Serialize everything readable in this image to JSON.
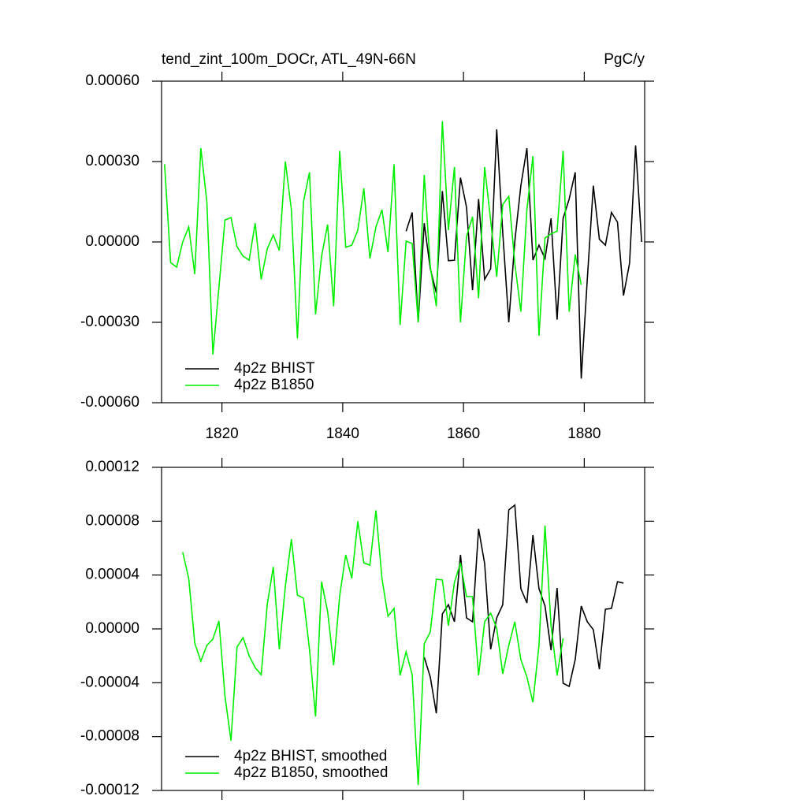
{
  "chart_data": [
    {
      "type": "line",
      "title": "tend_zint_100m_DOCr, ATL_49N-66N",
      "units": "PgC/y",
      "xlim": [
        1810,
        1890
      ],
      "xticks": [
        1820,
        1840,
        1860,
        1880
      ],
      "ylim": [
        -0.0006,
        0.0006
      ],
      "yticks": [
        {
          "value": 0.0006,
          "label": "0.00060"
        },
        {
          "value": 0.0003,
          "label": "0.00030"
        },
        {
          "value": 0,
          "label": "0.00000"
        },
        {
          "value": -0.0003,
          "label": "-0.00030"
        },
        {
          "value": -0.0006,
          "label": "-0.00060"
        }
      ],
      "legend": "lower left",
      "series": [
        {
          "name": "4p2z BHIST",
          "color": "#000000",
          "x": [
            1850.5,
            1851.5,
            1852.5,
            1853.5,
            1854.5,
            1855.5,
            1856.5,
            1857.5,
            1858.5,
            1859.5,
            1860.5,
            1861.5,
            1862.5,
            1863.5,
            1864.5,
            1865.5,
            1866.5,
            1867.5,
            1868.5,
            1869.5,
            1870.5,
            1871.5,
            1872.5,
            1873.5,
            1874.5,
            1875.5,
            1876.5,
            1877.5,
            1878.5,
            1879.5,
            1880.5,
            1881.5,
            1882.5,
            1883.5,
            1884.5,
            1885.5,
            1886.5,
            1887.5,
            1888.5,
            1889.5
          ],
          "values": [
            4e-05,
            0.00011,
            -0.0003,
            7e-05,
            -0.0001,
            -0.00019,
            0.00019,
            -7e-05,
            -6.8e-05,
            0.00024,
            0.00013,
            -0.00018,
            0.00016,
            -0.00014,
            -0.0001,
            0.00042,
            3.5e-05,
            -0.0003,
            3e-06,
            0.00021,
            0.00035,
            -6.8e-05,
            -1.2e-05,
            -6.2e-05,
            8.8e-05,
            -0.00029,
            8.8e-05,
            0.00016,
            0.00026,
            -0.00051,
            -0.00014,
            0.00021,
            1e-05,
            -1.2e-05,
            0.00011,
            7.4e-05,
            -0.0002,
            -7.9e-05,
            0.00036,
            0
          ]
        },
        {
          "name": "4p2z B1850",
          "color": "#00ee00",
          "x": [
            1810.5,
            1811.5,
            1812.5,
            1813.5,
            1814.5,
            1815.5,
            1816.5,
            1817.5,
            1818.5,
            1819.5,
            1820.5,
            1821.5,
            1822.5,
            1823.5,
            1824.5,
            1825.5,
            1826.5,
            1827.5,
            1828.5,
            1829.5,
            1830.5,
            1831.5,
            1832.5,
            1833.5,
            1834.5,
            1835.5,
            1836.5,
            1837.5,
            1838.5,
            1839.5,
            1840.5,
            1841.5,
            1842.5,
            1843.5,
            1844.5,
            1845.5,
            1846.5,
            1847.5,
            1848.5,
            1849.5,
            1850.5,
            1851.5,
            1852.5,
            1853.5,
            1854.5,
            1855.5,
            1856.5,
            1857.5,
            1858.5,
            1859.5,
            1860.5,
            1861.5,
            1862.5,
            1863.5,
            1864.5,
            1865.5,
            1866.5,
            1867.5,
            1868.5,
            1869.5,
            1870.5,
            1871.5,
            1872.5,
            1873.5,
            1874.5,
            1875.5,
            1876.5,
            1877.5,
            1878.5,
            1879.5
          ],
          "values": [
            0.00029,
            -7.7e-05,
            -9.4e-05,
            0,
            5.6e-05,
            -0.00012,
            0.00035,
            0.00015,
            -0.00042,
            -0.00017,
            8.2e-05,
            9.1e-05,
            -1.8e-05,
            -5.3e-05,
            -6.8e-05,
            7e-05,
            -0.00014,
            -2.6e-05,
            2.6e-05,
            -3.2e-05,
            0.0003,
            0.00012,
            -0.00036,
            0.00015,
            0.00026,
            -0.00027,
            -5.3e-05,
            6.5e-05,
            -0.00024,
            0.00034,
            -2e-05,
            -1.2e-05,
            4.4e-05,
            0.0002,
            -6.2e-05,
            5.6e-05,
            0.00012,
            -3.8e-05,
            0.00029,
            -0.00031,
            3e-06,
            -6e-06,
            -0.0003,
            0.00025,
            -9.1e-05,
            -0.00024,
            0.00045,
            4.4e-05,
            0.00028,
            -0.0003,
            2e-05,
            9.4e-05,
            -0.00021,
            0.00028,
            8e-05,
            -0.00013,
            0.00014,
            0.00017,
            -8e-05,
            -0.00026,
            0.00012,
            0.00032,
            -0.00035,
            1.5e-05,
            3e-05,
            4e-05,
            0.00034,
            -0.00026,
            -4.7e-05,
            -0.00016
          ]
        }
      ]
    },
    {
      "type": "line",
      "xlim": [
        1810,
        1890
      ],
      "xticks": [
        1820,
        1840,
        1860,
        1880
      ],
      "ylim": [
        -0.00012,
        0.00012
      ],
      "yticks": [
        {
          "value": 0.00012,
          "label": "0.00012"
        },
        {
          "value": 8e-05,
          "label": "0.00008"
        },
        {
          "value": 4e-05,
          "label": "0.00004"
        },
        {
          "value": 0,
          "label": "0.00000"
        },
        {
          "value": -4e-05,
          "label": "-0.00004"
        },
        {
          "value": -8e-05,
          "label": "-0.00008"
        },
        {
          "value": -0.00012,
          "label": "-0.00012"
        }
      ],
      "legend": "lower left",
      "series": [
        {
          "name": "4p2z BHIST, smoothed",
          "color": "#000000",
          "x": [
            1853.5,
            1854.5,
            1855.5,
            1856.5,
            1857.5,
            1858.5,
            1859.5,
            1860.5,
            1861.5,
            1862.5,
            1863.5,
            1864.5,
            1865.5,
            1866.5,
            1867.5,
            1868.5,
            1869.5,
            1870.5,
            1871.5,
            1872.5,
            1873.5,
            1874.5,
            1875.5,
            1876.5,
            1877.5,
            1878.5,
            1879.5,
            1880.5,
            1881.5,
            1882.5,
            1883.5,
            1884.5,
            1885.5,
            1886.5
          ],
          "values": [
            -2.1e-05,
            -3.57e-05,
            -6.27e-05,
            1.11e-05,
            1.8e-05,
            5.3e-06,
            5.5e-05,
            8.2e-06,
            5.3e-06,
            7.44e-05,
            4.86e-05,
            -1.52e-05,
            8.2e-06,
            1.8e-05,
            8.84e-05,
            9.2e-05,
            2.99e-05,
            1.93e-05,
            6.97e-05,
            2.99e-05,
            1.7e-05,
            -1.58e-05,
            3.04e-05,
            -4.04e-05,
            -4.27e-05,
            -2.28e-05,
            1.7e-05,
            5.3e-06,
            -6e-07,
            -2.99e-05,
            1.46e-05,
            1.52e-05,
            3.51e-05,
            3.4e-05
          ]
        },
        {
          "name": "4p2z B1850, smoothed",
          "color": "#00ee00",
          "x": [
            1813.5,
            1814.5,
            1815.5,
            1816.5,
            1817.5,
            1818.5,
            1819.5,
            1820.5,
            1821.5,
            1822.5,
            1823.5,
            1824.5,
            1825.5,
            1826.5,
            1827.5,
            1828.5,
            1829.5,
            1830.5,
            1831.5,
            1832.5,
            1833.5,
            1834.5,
            1835.5,
            1836.5,
            1837.5,
            1838.5,
            1839.5,
            1840.5,
            1841.5,
            1842.5,
            1843.5,
            1844.5,
            1845.5,
            1846.5,
            1847.5,
            1848.5,
            1849.5,
            1850.5,
            1851.5,
            1852.5,
            1853.5,
            1854.5,
            1855.5,
            1856.5,
            1857.5,
            1858.5,
            1859.5,
            1860.5,
            1861.5,
            1862.5,
            1863.5,
            1864.5,
            1865.5,
            1866.5,
            1867.5,
            1868.5,
            1869.5,
            1870.5,
            1871.5,
            1872.5,
            1873.5,
            1874.5,
            1875.5,
            1876.5
          ],
          "values": [
            5.7e-05,
            3.75e-05,
            -1.05e-05,
            -2.4e-05,
            -1.23e-05,
            -7.6e-06,
            5.9e-06,
            -5e-05,
            -8.3e-05,
            -1.35e-05,
            -6.4e-06,
            -2e-05,
            -2.87e-05,
            -3.4e-05,
            1.8e-05,
            4.6e-05,
            -1.52e-05,
            3.16e-05,
            6.67e-05,
            2.52e-05,
            2.28e-05,
            -1.52e-05,
            -6.5e-05,
            3.51e-05,
            1.29e-05,
            -2.7e-05,
            2.46e-05,
            5.5e-05,
            3.75e-05,
            8e-05,
            4.9e-05,
            4.74e-05,
            8.8e-05,
            3.75e-05,
            9.4e-06,
            1.52e-05,
            -3.45e-05,
            -1.7e-05,
            -3.4e-05,
            -0.000116,
            -1.11e-05,
            -2.3e-06,
            3.69e-05,
            3.63e-05,
            2.3e-06,
            3.45e-05,
            4.9e-05,
            2.4e-05,
            2.4e-05,
            -3.45e-05,
            5.3e-06,
            1.17e-05,
            6e-07,
            -3.34e-05,
            -1.23e-05,
            5.3e-06,
            -2.28e-05,
            -3.57e-05,
            -5.45e-05,
            -1.23e-05,
            7.67e-05,
            2.3e-06,
            -3.45e-05,
            -7e-06
          ]
        }
      ]
    }
  ]
}
